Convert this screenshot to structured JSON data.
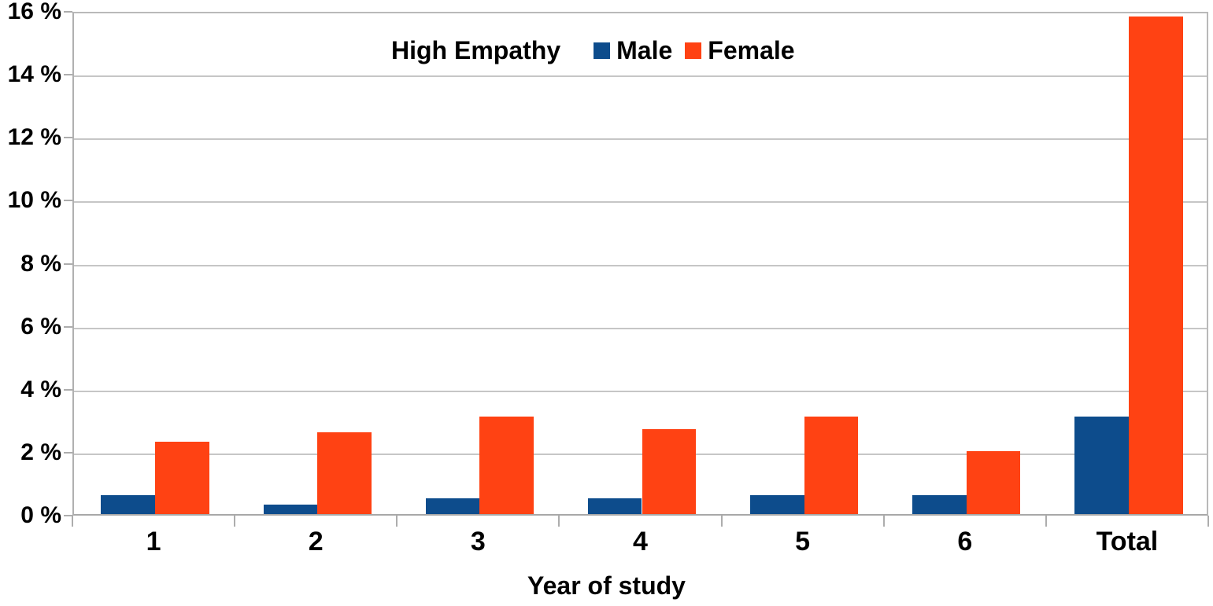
{
  "chart_data": {
    "type": "bar",
    "title": "High Empathy",
    "xlabel": "Year of study",
    "ylabel": "",
    "categories": [
      "1",
      "2",
      "3",
      "4",
      "5",
      "6",
      "Total"
    ],
    "series": [
      {
        "name": "Male",
        "color": "#0D4C8C",
        "values": [
          0.6,
          0.3,
          0.5,
          0.5,
          0.6,
          0.6,
          3.1
        ]
      },
      {
        "name": "Female",
        "color": "#FF4213",
        "values": [
          2.3,
          2.6,
          3.1,
          2.7,
          3.1,
          2.0,
          15.8
        ]
      }
    ],
    "ylim": [
      0,
      16
    ],
    "ytick_step": 2,
    "ytick_suffix": " %",
    "grid": true,
    "legend_position": "top-center-right-of-title"
  },
  "colors": {
    "male_bar": "#0D4C8C",
    "female_bar": "#FF4213",
    "gridline": "#C6C6C6",
    "axis": "#ADADAD",
    "plot_border": "#B9B9B9",
    "text": "#000000",
    "background": "#FFFFFF"
  }
}
